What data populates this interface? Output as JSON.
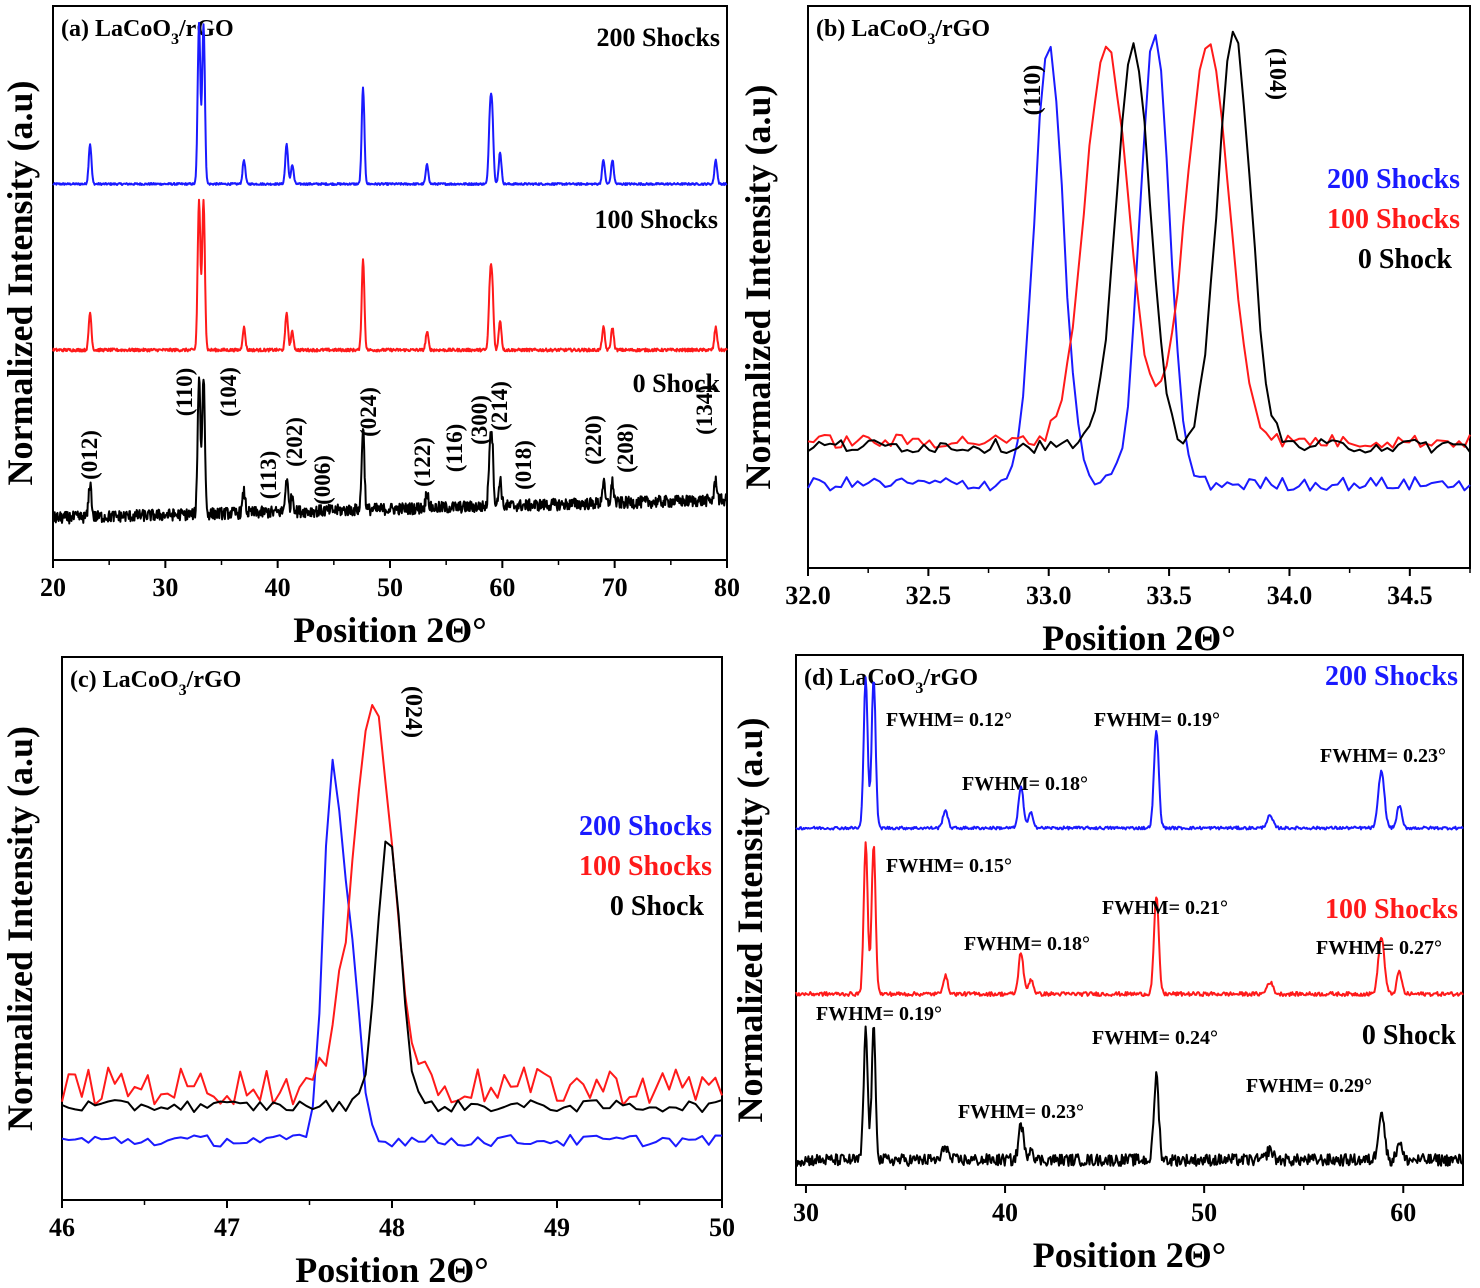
{
  "figure": {
    "panels": [
      {
        "id": "a",
        "title": "(a) LaCoO",
        "title_sub": "3",
        "title_suffix": "/rGO",
        "ylabel": "Normalized Intensity (a.u)",
        "xlabel": "Position 2Θ°",
        "xticks": [
          "20",
          "30",
          "40",
          "50",
          "60",
          "70",
          "80"
        ]
      },
      {
        "id": "b",
        "title": "(b) LaCoO",
        "title_sub": "3",
        "title_suffix": "/rGO",
        "ylabel": "Normalized Intensity (a.u)",
        "xlabel": "Position 2Θ°",
        "xticks": [
          "32.0",
          "32.5",
          "33.0",
          "33.5",
          "34.0",
          "34.5"
        ]
      },
      {
        "id": "c",
        "title": "(c) LaCoO",
        "title_sub": "3",
        "title_suffix": "/rGO",
        "ylabel": "Normalized Intensity (a.u)",
        "xlabel": "Position 2Θ°",
        "xticks": [
          "46",
          "47",
          "48",
          "49",
          "50"
        ]
      },
      {
        "id": "d",
        "title": "(d) LaCoO",
        "title_sub": "3",
        "title_suffix": "/rGO",
        "ylabel": "Normalized Intensity (a.u)",
        "xlabel": "Position 2Θ°",
        "xticks": [
          "30",
          "40",
          "50",
          "60"
        ]
      }
    ]
  },
  "colors": {
    "shocks_200": "#1a1aff",
    "shocks_100": "#ff1a1a",
    "shock_0": "#000000"
  },
  "chart_data": [
    {
      "type": "line",
      "panel": "a",
      "title": "(a) LaCoO3/rGO",
      "xlabel": "Position 2Θ°",
      "ylabel": "Normalized Intensity (a.u)",
      "xlim": [
        20,
        80
      ],
      "series_labels": [
        "200 Shocks",
        "100 Shocks",
        "0 Shock"
      ],
      "peaks_2theta": [
        23.3,
        33.0,
        33.4,
        37.0,
        40.8,
        41.3,
        47.6,
        53.3,
        58.9,
        59.1,
        59.8,
        69.0,
        69.8,
        79.0
      ],
      "peak_heights": [
        0.25,
        1.0,
        1.0,
        0.15,
        0.25,
        0.12,
        0.6,
        0.12,
        0.4,
        0.4,
        0.2,
        0.15,
        0.15,
        0.15
      ],
      "annotations": [
        "(012)",
        "(110)",
        "(104)",
        "(113)",
        "(202)",
        "(006)",
        "(024)",
        "(122)",
        "(116)",
        "(300)",
        "(214)",
        "(018)",
        "(220)",
        "(208)",
        "(134)"
      ]
    },
    {
      "type": "line",
      "panel": "b",
      "title": "(b) LaCoO3/rGO",
      "xlabel": "Position 2Θ°",
      "ylabel": "Normalized Intensity (a.u)",
      "xlim": [
        32.0,
        34.75
      ],
      "annotations": [
        "(110)",
        "(104)"
      ],
      "series": [
        {
          "name": "200 Shocks",
          "baseline": 0.03,
          "peaks": [
            {
              "x": 33.0,
              "h": 0.93,
              "w": 0.06
            },
            {
              "x": 33.44,
              "h": 0.96,
              "w": 0.06
            }
          ]
        },
        {
          "name": "100 Shocks",
          "baseline": 0.12,
          "peaks": [
            {
              "x": 33.24,
              "h": 0.84,
              "w": 0.09
            },
            {
              "x": 33.66,
              "h": 0.84,
              "w": 0.09
            }
          ]
        },
        {
          "name": "0 Shock",
          "baseline": 0.11,
          "peaks": [
            {
              "x": 33.35,
              "h": 0.85,
              "w": 0.07
            },
            {
              "x": 33.77,
              "h": 0.87,
              "w": 0.07
            }
          ]
        }
      ]
    },
    {
      "type": "line",
      "panel": "c",
      "title": "(c) LaCoO3/rGO",
      "xlabel": "Position 2Θ°",
      "ylabel": "Normalized Intensity (a.u)",
      "xlim": [
        46,
        50
      ],
      "annotations": [
        "(024)"
      ],
      "series": [
        {
          "name": "200 Shocks",
          "baseline": 0.08,
          "peaks": [
            {
              "x": 47.63,
              "h": 0.68,
              "w": 0.05
            },
            {
              "x": 47.74,
              "h": 0.42,
              "w": 0.06
            }
          ]
        },
        {
          "name": "100 Shocks",
          "baseline": 0.19,
          "peaks": [
            {
              "x": 47.88,
              "h": 0.79,
              "w": 0.12
            }
          ]
        },
        {
          "name": "0 Shock",
          "baseline": 0.15,
          "peaks": [
            {
              "x": 47.98,
              "h": 0.56,
              "w": 0.07
            }
          ]
        }
      ]
    },
    {
      "type": "line",
      "panel": "d",
      "title": "(d) LaCoO3/rGO",
      "xlabel": "Position 2Θ°",
      "ylabel": "Normalized Intensity (a.u)",
      "xlim": [
        29.5,
        63
      ],
      "series": [
        {
          "name": "200 Shocks",
          "fwhm_labels": [
            "FWHM= 0.12°",
            "FWHM= 0.18°",
            "FWHM= 0.19°",
            "FWHM= 0.23°"
          ]
        },
        {
          "name": "100 Shocks",
          "fwhm_labels": [
            "FWHM= 0.15°",
            "FWHM= 0.18°",
            "FWHM= 0.21°",
            "FWHM= 0.27°"
          ]
        },
        {
          "name": "0 Shock",
          "fwhm_labels": [
            "FWHM= 0.19°",
            "FWHM= 0.23°",
            "FWHM= 0.24°",
            "FWHM= 0.29°"
          ]
        }
      ]
    }
  ]
}
